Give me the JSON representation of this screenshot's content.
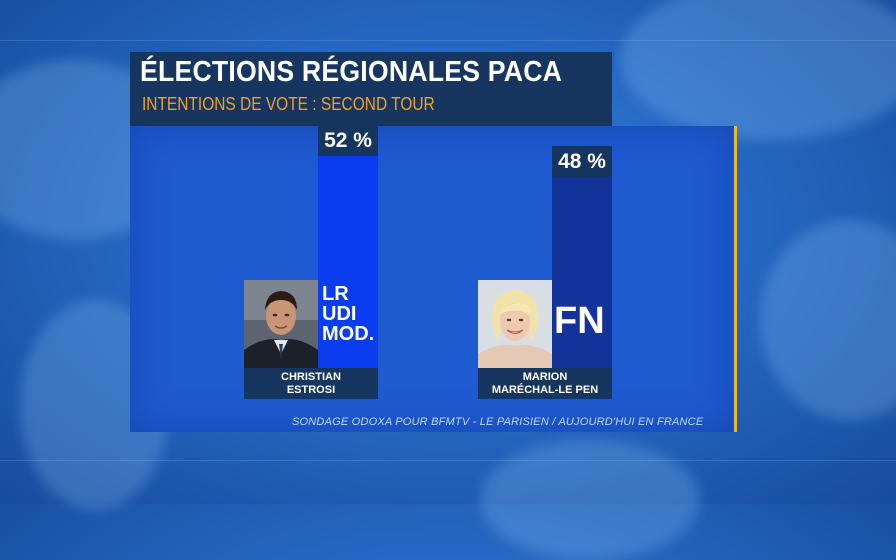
{
  "header": {
    "title": "ÉLECTIONS RÉGIONALES PACA",
    "subtitle": "INTENTIONS DE VOTE : SECOND TOUR"
  },
  "chart_data": {
    "type": "bar",
    "title": "ÉLECTIONS RÉGIONALES PACA",
    "subtitle": "INTENTIONS DE VOTE : SECOND TOUR",
    "unit": "%",
    "ylim": [
      0,
      100
    ],
    "categories": [
      "CHRISTIAN ESTROSI",
      "MARION MARÉCHAL-LE PEN"
    ],
    "values": [
      52,
      48
    ],
    "value_labels": [
      "52 %",
      "48 %"
    ],
    "parties": [
      [
        "LR",
        "UDI",
        "MOD."
      ],
      [
        "FN"
      ]
    ],
    "name_lines": [
      [
        "CHRISTIAN",
        "ESTROSI"
      ],
      [
        "MARION",
        "MARÉCHAL-LE PEN"
      ]
    ],
    "bar_colors": [
      "#0a3df0",
      "#14339a"
    ],
    "source": "SONDAGE ODOXA POUR BFMTV - LE PARISIEN / AUJOURD'HUI EN FRANCE"
  },
  "colors": {
    "background": "#2569c4",
    "panel": "#1e5ad0",
    "header": "#16365f",
    "subtitle": "#f0a030",
    "accent_line": "#e8b830"
  }
}
